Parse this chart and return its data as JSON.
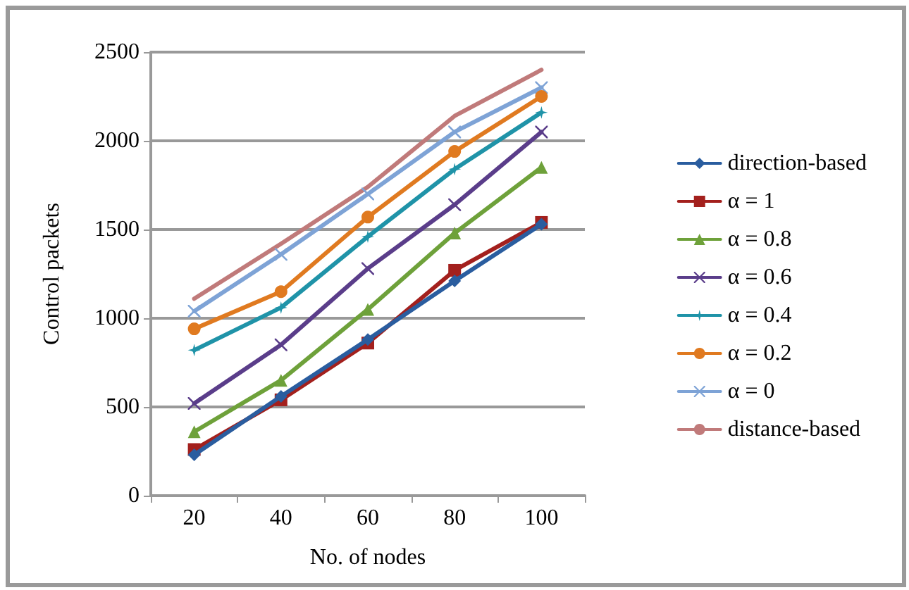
{
  "chart_data": {
    "type": "line",
    "xlabel": "No. of nodes",
    "ylabel": "Control packets",
    "categories": [
      "20",
      "40",
      "60",
      "80",
      "100"
    ],
    "ylim": [
      0,
      2500
    ],
    "yticks": [
      0,
      500,
      1000,
      1500,
      2000,
      2500
    ],
    "grid": "y",
    "legend": "right",
    "line_style": "solid",
    "series": [
      {
        "name": "direction-based",
        "color": "#2a5d9f",
        "marker": "diamond",
        "values": [
          230,
          560,
          880,
          1210,
          1530
        ]
      },
      {
        "name": "α = 1",
        "color": "#a3201d",
        "marker": "square",
        "values": [
          260,
          540,
          860,
          1270,
          1540
        ]
      },
      {
        "name": "α = 0.8",
        "color": "#6ea13a",
        "marker": "triangle",
        "values": [
          360,
          650,
          1050,
          1480,
          1850
        ]
      },
      {
        "name": "α = 0.6",
        "color": "#5a3d8a",
        "marker": "cross",
        "values": [
          520,
          850,
          1280,
          1640,
          2050
        ]
      },
      {
        "name": "α = 0.4",
        "color": "#1f93a8",
        "marker": "star",
        "values": [
          820,
          1060,
          1460,
          1840,
          2160
        ]
      },
      {
        "name": "α = 0.2",
        "color": "#e07a20",
        "marker": "circle",
        "values": [
          940,
          1150,
          1570,
          1940,
          2250
        ]
      },
      {
        "name": "α = 0",
        "color": "#7ea3d6",
        "marker": "cross",
        "values": [
          1040,
          1360,
          1700,
          2050,
          2300
        ]
      },
      {
        "name": "distance-based",
        "color": "#c07a7a",
        "marker": "none",
        "values": [
          1110,
          1420,
          1740,
          2140,
          2400
        ]
      }
    ]
  }
}
